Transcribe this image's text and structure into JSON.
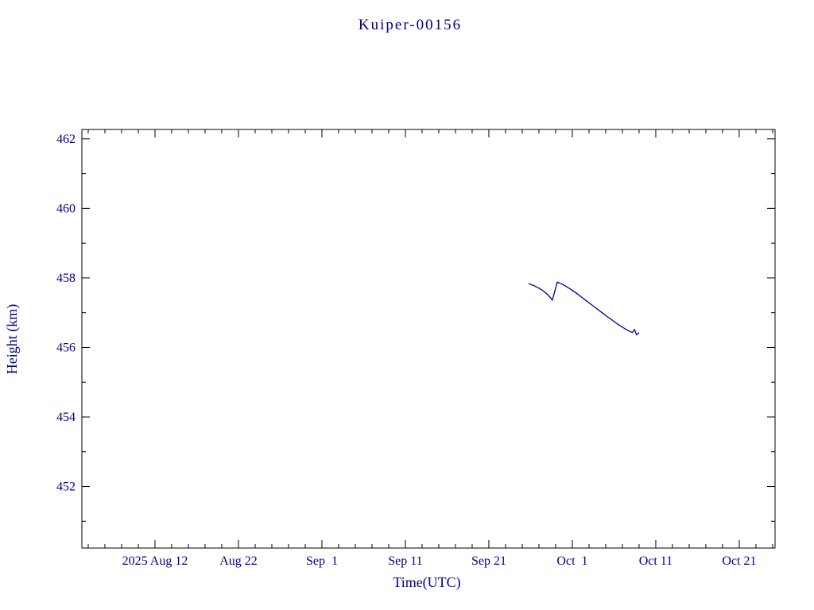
{
  "page": {
    "background": "#ffffff"
  },
  "chart_data": {
    "type": "line",
    "title": "Kuiper-00156",
    "xlabel": "Time(UTC)",
    "ylabel": "Height (km)",
    "axis_color": "#000000",
    "text_color": "#00008b",
    "grid": false,
    "legend": "none",
    "x_axis": {
      "unit": "days since 2025 Aug 12 (UTC)",
      "range": [
        -8.76,
        74.29
      ],
      "major_ticks": [
        0,
        10,
        20,
        30,
        40,
        50,
        60,
        70
      ],
      "major_tick_labels": [
        "2025 Aug 12",
        "Aug 22",
        "Sep  1",
        "Sep 11",
        "Sep 21",
        "Oct  1",
        "Oct 11",
        "Oct 21"
      ],
      "minor_tick_step": 2
    },
    "y_axis": {
      "range": [
        450.23,
        462.27
      ],
      "major_ticks": [
        452,
        454,
        456,
        458,
        460,
        462
      ],
      "minor_tick_step": 1
    },
    "series": [
      {
        "name": "height",
        "color": "#00008b",
        "points": [
          [
            44.8,
            457.83
          ],
          [
            45.3,
            457.79
          ],
          [
            45.9,
            457.72
          ],
          [
            46.5,
            457.63
          ],
          [
            47.0,
            457.53
          ],
          [
            47.4,
            457.43
          ],
          [
            47.6,
            457.36
          ],
          [
            48.2,
            457.88
          ],
          [
            48.7,
            457.83
          ],
          [
            49.3,
            457.75
          ],
          [
            49.9,
            457.66
          ],
          [
            50.5,
            457.56
          ],
          [
            51.1,
            457.45
          ],
          [
            51.7,
            457.34
          ],
          [
            52.3,
            457.23
          ],
          [
            52.9,
            457.12
          ],
          [
            53.5,
            457.01
          ],
          [
            54.1,
            456.9
          ],
          [
            54.7,
            456.8
          ],
          [
            55.2,
            456.71
          ],
          [
            55.7,
            456.63
          ],
          [
            56.1,
            456.57
          ],
          [
            56.5,
            456.51
          ],
          [
            56.9,
            456.46
          ],
          [
            57.2,
            456.43
          ],
          [
            57.45,
            456.52
          ],
          [
            57.7,
            456.36
          ],
          [
            57.95,
            456.42
          ]
        ]
      }
    ]
  }
}
